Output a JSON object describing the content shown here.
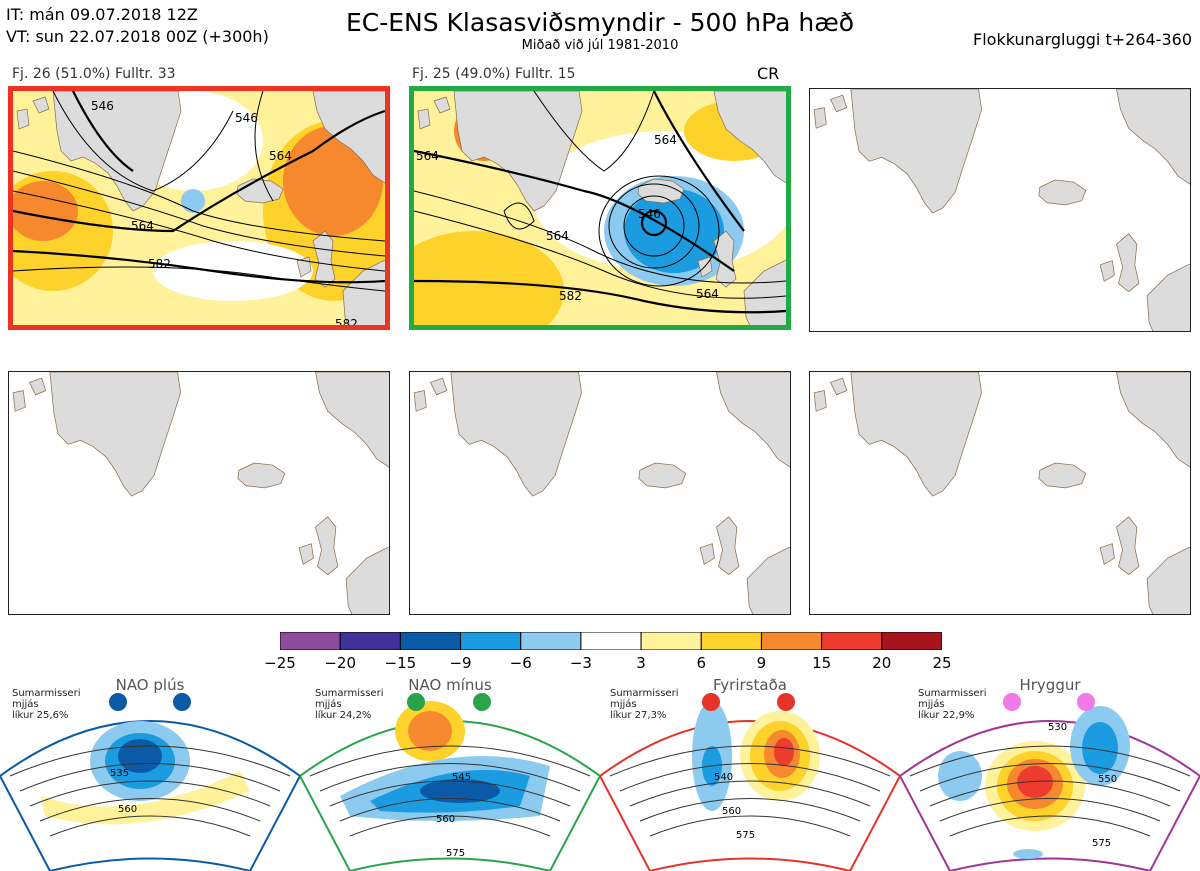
{
  "header": {
    "it_line": "IT: mán 09.07.2018 12Z",
    "vt_line": "VT: sun 22.07.2018 00Z  (+300h)",
    "title": "EC-ENS Klasasviðsmyndir - 500 hPa hæð",
    "subtitle": "Miðað við júl 1981-2010",
    "window": "Flokkunargluggi t+264-360"
  },
  "clusters": [
    {
      "label": "Fj. 26 (51.0%)   Fulltr. 33",
      "color": "#e63328",
      "contours": [
        "546",
        "564",
        "564",
        "582",
        "582",
        "546"
      ]
    },
    {
      "label": "Fj. 25 (49.0%)   Fulltr. 15",
      "color": "#2aa44a",
      "tag": "CR",
      "contours": [
        "564",
        "564",
        "546",
        "564",
        "582",
        "564"
      ]
    }
  ],
  "colorbar": {
    "ticks": [
      "−25",
      "−20",
      "−15",
      "−9",
      "−6",
      "−3",
      "3",
      "6",
      "9",
      "15",
      "20",
      "25"
    ],
    "colors": [
      "#8e4a9c",
      "#41329a",
      "#0a5aa8",
      "#1b9be0",
      "#8ccbef",
      "#ffffff",
      "#fff29b",
      "#fdd22a",
      "#f6892e",
      "#ee3b2f",
      "#a8141d"
    ]
  },
  "regimes": [
    {
      "name": "NAO plús",
      "info": [
        "Sumarmisseri",
        "mjjás",
        "líkur 25,6%"
      ],
      "color": "#0a5aa8",
      "contours": [
        "535",
        "560"
      ]
    },
    {
      "name": "NAO mínus",
      "info": [
        "Sumarmisseri",
        "mjjás",
        "líkur 24,2%"
      ],
      "color": "#2aa44a",
      "contours": [
        "545",
        "560",
        "575"
      ]
    },
    {
      "name": "Fyrirstaða",
      "info": [
        "Sumarmisseri",
        "mjjás",
        "líkur 27,3%"
      ],
      "color": "#e63328",
      "contours": [
        "540",
        "560",
        "575"
      ]
    },
    {
      "name": "Hryggur",
      "info": [
        "Sumarmisseri",
        "mjjás",
        "líkur 22,9%"
      ],
      "color": "#a03597",
      "contours": [
        "530",
        "550",
        "575"
      ]
    }
  ]
}
